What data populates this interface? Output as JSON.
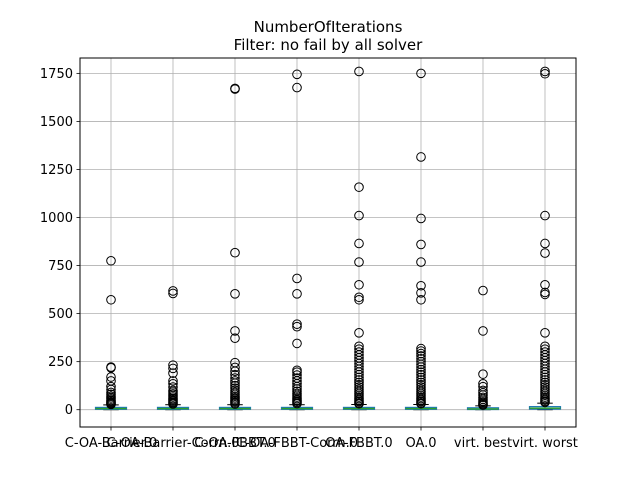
{
  "chart_data": {
    "type": "box",
    "title": "NumberOfIterations",
    "subtitle": "Filter: no fail by all solver",
    "xlabel": "",
    "ylabel": "",
    "ylim": [
      -90,
      1830
    ],
    "yticks": [
      0,
      250,
      500,
      750,
      1000,
      1250,
      1500,
      1750
    ],
    "grid": true,
    "categories": [
      "C-OA-Barrier.0",
      "C-OA-Barrier-Corrn.0",
      "C-OA-FBBT.0",
      "C-OA-FBBT-Corrn.0",
      "OA-FBBT.0",
      "OA.0",
      "virt. best",
      "virt. worst"
    ],
    "boxes": [
      {
        "q1": 2,
        "median": 6,
        "q3": 12,
        "whisker_low": 0,
        "whisker_high": 25,
        "outliers": [
          775,
          572,
          222,
          218,
          170,
          150,
          120,
          105,
          90,
          80,
          70,
          62,
          55,
          48,
          42,
          38,
          34,
          30,
          28
        ]
      },
      {
        "q1": 2,
        "median": 6,
        "q3": 12,
        "whisker_low": 0,
        "whisker_high": 26,
        "outliers": [
          618,
          605,
          232,
          215,
          190,
          150,
          135,
          118,
          100,
          92,
          82,
          74,
          66,
          58,
          52,
          46,
          40,
          35,
          30
        ]
      },
      {
        "q1": 2,
        "median": 6,
        "q3": 12,
        "whisker_low": 0,
        "whisker_high": 26,
        "outliers": [
          1672,
          1668,
          817,
          603,
          410,
          372,
          245,
          220,
          200,
          182,
          165,
          150,
          138,
          125,
          112,
          100,
          90,
          80,
          70,
          62,
          55,
          48,
          42,
          36,
          30
        ]
      },
      {
        "q1": 2,
        "median": 6,
        "q3": 12,
        "whisker_low": 0,
        "whisker_high": 26,
        "outliers": [
          1745,
          1676,
          683,
          603,
          445,
          432,
          345,
          205,
          195,
          180,
          165,
          150,
          135,
          120,
          108,
          96,
          85,
          75,
          66,
          58,
          50,
          44,
          38,
          32
        ]
      },
      {
        "q1": 2,
        "median": 6,
        "q3": 12,
        "whisker_low": 0,
        "whisker_high": 27,
        "outliers": [
          1760,
          1158,
          1010,
          865,
          768,
          650,
          585,
          572,
          400,
          330,
          315,
          300,
          285,
          270,
          255,
          240,
          225,
          210,
          196,
          182,
          168,
          155,
          142,
          130,
          118,
          106,
          95,
          85,
          75,
          66,
          58,
          50,
          43,
          36,
          31
        ]
      },
      {
        "q1": 2,
        "median": 6,
        "q3": 12,
        "whisker_low": 0,
        "whisker_high": 27,
        "outliers": [
          1750,
          1315,
          995,
          860,
          768,
          645,
          608,
          572,
          318,
          305,
          292,
          280,
          265,
          250,
          236,
          222,
          208,
          195,
          182,
          168,
          155,
          142,
          130,
          118,
          106,
          95,
          85,
          75,
          66,
          58,
          50,
          43,
          36,
          31
        ]
      },
      {
        "q1": 1,
        "median": 4,
        "q3": 10,
        "whisker_low": 0,
        "whisker_high": 20,
        "outliers": [
          620,
          410,
          185,
          135,
          120,
          100,
          88,
          76,
          64,
          54,
          45,
          38,
          32,
          27,
          24
        ]
      },
      {
        "q1": 3,
        "median": 8,
        "q3": 16,
        "whisker_low": 0,
        "whisker_high": 34,
        "outliers": [
          1760,
          1748,
          1010,
          865,
          815,
          650,
          610,
          600,
          400,
          330,
          315,
          300,
          285,
          270,
          255,
          240,
          225,
          210,
          196,
          182,
          168,
          155,
          142,
          130,
          118,
          106,
          95,
          85,
          75,
          66,
          58,
          50,
          43,
          38
        ]
      }
    ],
    "colors": {
      "box": "#1f77b4",
      "median": "#2ca02c",
      "whisker": "#000000",
      "grid": "#b0b0b0",
      "outlier": "#000000"
    }
  }
}
